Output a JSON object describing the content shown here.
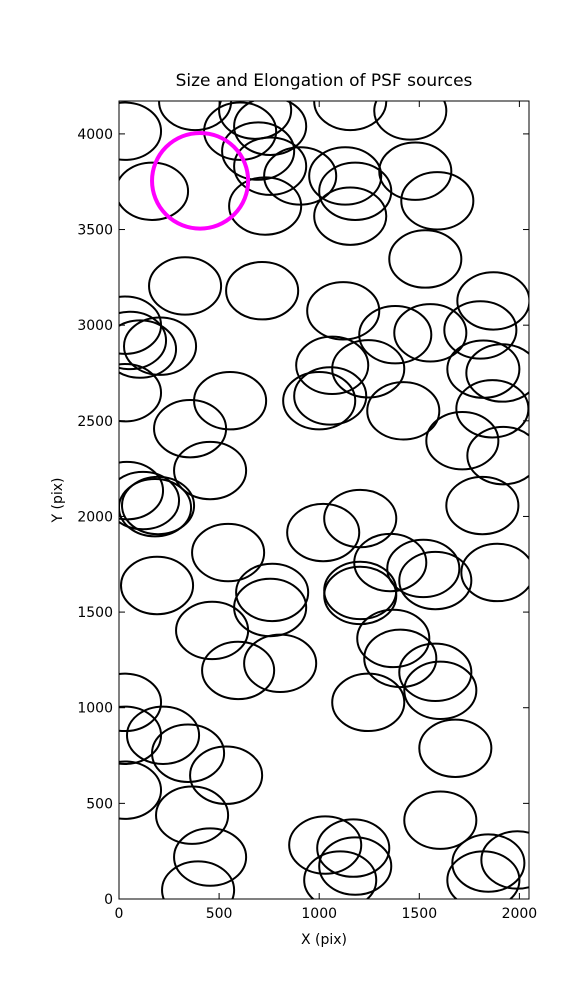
{
  "chart_data": {
    "type": "scatter",
    "title": "Size and Elongation of PSF sources",
    "xlabel": "X (pix)",
    "ylabel": "Y (pix)",
    "xlim": [
      0,
      2048
    ],
    "ylim": [
      0,
      4172
    ],
    "xticks": [
      0,
      500,
      1000,
      1500,
      2000
    ],
    "yticks": [
      0,
      500,
      1000,
      1500,
      2000,
      2500,
      3000,
      3500,
      4000
    ],
    "series": [
      {
        "color": "#000000",
        "width": 360,
        "height": 300,
        "x": [
          30,
          165,
          380,
          680,
          755,
          605,
          695,
          755,
          905,
          1130,
          1180,
          1155,
          730,
          1155,
          1455,
          1480,
          1590,
          1530,
          330,
          715,
          1120,
          1870,
          1805,
          1555,
          1380,
          30,
          55,
          205,
          105,
          1065,
          1245,
          1820,
          1915,
          30,
          1055,
          1000,
          555,
          1420,
          1865,
          355,
          1715,
          1920,
          455,
          40,
          120,
          180,
          195,
          1815,
          1205,
          1020,
          545,
          1355,
          1520,
          1580,
          1890,
          190,
          765,
          755,
          1205,
          1205,
          1370,
          1405,
          465,
          595,
          805,
          1580,
          1605,
          1245,
          30,
          30,
          220,
          345,
          535,
          1680,
          30,
          1605,
          365,
          455,
          1030,
          1170,
          1180,
          1105,
          395,
          1820,
          1845,
          1990
        ],
        "y": [
          4014,
          3700,
          4170,
          4124,
          4040,
          4014,
          3910,
          3831,
          3780,
          3780,
          3700,
          3570,
          3623,
          4170,
          4120,
          3805,
          3650,
          3346,
          3205,
          3180,
          3075,
          3127,
          2975,
          2960,
          2950,
          3000,
          2920,
          2890,
          2875,
          2790,
          2772,
          2770,
          2750,
          2647,
          2630,
          2605,
          2605,
          2552,
          2563,
          2459,
          2396,
          2318,
          2240,
          2135,
          2083,
          2046,
          2057,
          2057,
          1989,
          1916,
          1811,
          1759,
          1728,
          1665,
          1707,
          1639,
          1603,
          1524,
          1613,
          1587,
          1362,
          1258,
          1404,
          1195,
          1232,
          1185,
          1091,
          1028,
          1028,
          856,
          856,
          762,
          647,
          788,
          569,
          412,
          438,
          219,
          282,
          266,
          172,
          99,
          47,
          99,
          188,
          204
        ]
      },
      {
        "color": "#ff00ff",
        "width": 480,
        "height": 500,
        "x": [
          405
        ],
        "y": [
          3755
        ]
      }
    ]
  }
}
